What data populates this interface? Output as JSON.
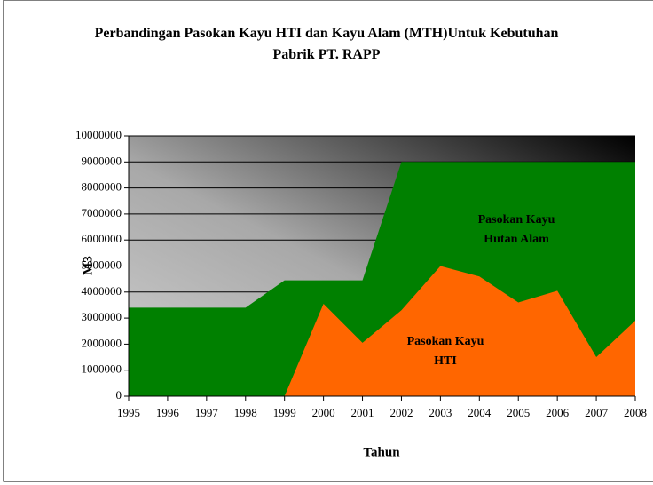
{
  "chart_data": {
    "type": "area",
    "title": "Perbandingan Pasokan Kayu HTI dan Kayu Alam (MTH)Untuk Kebutuhan Pabrik PT. RAPP",
    "x_label": "Tahun",
    "y_label": "M3",
    "x": [
      1995,
      1996,
      1997,
      1998,
      1999,
      2000,
      2001,
      2002,
      2003,
      2004,
      2005,
      2006,
      2007,
      2008
    ],
    "xlim": [
      1995,
      2008
    ],
    "xticks": [
      1995,
      1996,
      1997,
      1998,
      1999,
      2000,
      2001,
      2002,
      2003,
      2004,
      2005,
      2006,
      2007,
      2008
    ],
    "ylim": [
      0,
      10000000
    ],
    "yticks": [
      0,
      1000000,
      2000000,
      3000000,
      4000000,
      5000000,
      6000000,
      7000000,
      8000000,
      9000000,
      10000000
    ],
    "grid": true,
    "series": [
      {
        "name": "Pasokan Kayu Hutan Alam",
        "color": "#008000",
        "values": [
          3400000,
          3400000,
          3400000,
          3400000,
          4450000,
          4450000,
          4450000,
          9000000,
          9000000,
          9000000,
          9000000,
          9000000,
          9000000,
          9000000
        ]
      },
      {
        "name": "Pasokan Kayu HTI",
        "color": "#ff6600",
        "values": [
          0,
          0,
          0,
          0,
          0,
          3550000,
          2050000,
          3300000,
          5000000,
          4600000,
          3600000,
          4050000,
          1500000,
          2900000
        ]
      }
    ]
  }
}
